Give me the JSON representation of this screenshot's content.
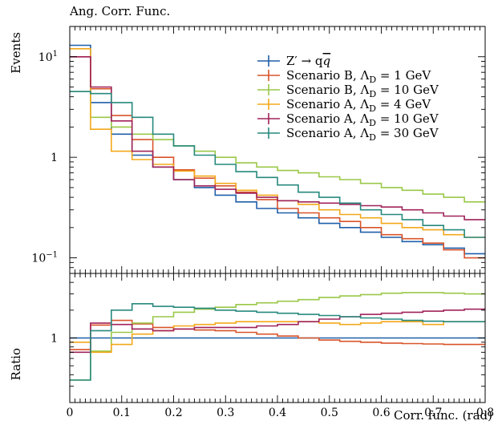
{
  "chart_data": {
    "type": "line",
    "title": "Ang. Corr. Func.",
    "xlabel": "Corr. func. (rad)",
    "ylabel_main": "Events",
    "ylabel_ratio": "Ratio",
    "xlim": [
      0,
      0.8
    ],
    "ylim_main": [
      0.07,
      20
    ],
    "ylim_ratio": [
      0.2,
      5
    ],
    "yscale": "log",
    "legend_position": "top-right",
    "x_ticks": [
      {
        "v": 0,
        "label": "0"
      },
      {
        "v": 0.1,
        "label": "0.1"
      },
      {
        "v": 0.2,
        "label": "0.2"
      },
      {
        "v": 0.3,
        "label": "0.3"
      },
      {
        "v": 0.4,
        "label": "0.4"
      },
      {
        "v": 0.5,
        "label": "0.5"
      },
      {
        "v": 0.6,
        "label": "0.6"
      },
      {
        "v": 0.7,
        "label": "0.7"
      },
      {
        "v": 0.8,
        "label": "0.8"
      }
    ],
    "main_y_ticks": [
      {
        "v": 0.1,
        "base": "10",
        "exp": "−1"
      },
      {
        "v": 1,
        "base": "1",
        "exp": ""
      },
      {
        "v": 10,
        "base": "10",
        "exp": "1"
      }
    ],
    "ratio_y_ticks": [
      {
        "v": 1,
        "label": "1"
      }
    ],
    "bin_edges": [
      0,
      0.04,
      0.08,
      0.12,
      0.16,
      0.2,
      0.24,
      0.28,
      0.32,
      0.36,
      0.4,
      0.44,
      0.48,
      0.52,
      0.56,
      0.6,
      0.64,
      0.68,
      0.72,
      0.76,
      0.8
    ],
    "series": [
      {
        "label_main": "Z′ → q",
        "label_bar": "q",
        "label_sub": "",
        "label_tail": "",
        "color": "#1f5fa8",
        "values": [
          13,
          3.5,
          1.7,
          1.05,
          0.8,
          0.6,
          0.5,
          0.42,
          0.36,
          0.31,
          0.28,
          0.25,
          0.22,
          0.2,
          0.18,
          0.16,
          0.145,
          0.135,
          0.125,
          0.11
        ],
        "ratio": [
          1,
          1,
          1,
          1,
          1,
          1,
          1,
          1,
          1,
          1,
          1,
          1,
          1,
          1,
          1,
          1,
          1,
          1,
          1,
          1
        ]
      },
      {
        "label_main": "Scenario B, Λ",
        "label_bar": "",
        "label_sub": "D",
        "label_tail": " = 1 GeV",
        "color": "#d9542a",
        "values": [
          10,
          4.8,
          2.6,
          1.5,
          1.0,
          0.75,
          0.62,
          0.52,
          0.45,
          0.38,
          0.31,
          0.28,
          0.25,
          0.23,
          0.2,
          0.17,
          0.155,
          0.14,
          0.12,
          0.1
        ],
        "ratio": [
          0.75,
          1.38,
          1.55,
          1.42,
          1.3,
          1.25,
          1.22,
          1.2,
          1.15,
          1.1,
          1.05,
          1,
          0.95,
          0.92,
          0.9,
          0.88,
          0.87,
          0.86,
          0.85,
          0.85
        ]
      },
      {
        "label_main": "Scenario B, Λ",
        "label_bar": "",
        "label_sub": "D",
        "label_tail": " = 10 GeV",
        "color": "#9ac848",
        "values": [
          4.5,
          2.5,
          2.0,
          1.7,
          1.5,
          1.3,
          1.15,
          1.0,
          0.88,
          0.8,
          0.74,
          0.7,
          0.64,
          0.6,
          0.55,
          0.5,
          0.47,
          0.43,
          0.4,
          0.36
        ],
        "ratio": [
          0.35,
          0.72,
          1.15,
          1.45,
          1.7,
          1.9,
          2.05,
          2.15,
          2.3,
          2.4,
          2.5,
          2.6,
          2.75,
          2.85,
          2.95,
          3.05,
          3.1,
          3.1,
          3.05,
          3.0
        ]
      },
      {
        "label_main": "Scenario A, Λ",
        "label_bar": "",
        "label_sub": "D",
        "label_tail": " = 4 GeV",
        "color": "#f3a81b",
        "values": [
          12,
          1.9,
          1.15,
          0.95,
          0.85,
          0.73,
          0.65,
          0.55,
          0.47,
          0.42,
          0.37,
          0.34,
          0.3,
          0.27,
          0.25,
          0.22,
          0.2,
          0.19,
          0.17,
          0.16
        ],
        "ratio": [
          0.9,
          0.7,
          0.85,
          1.1,
          1.2,
          1.35,
          1.4,
          1.45,
          1.5,
          1.5,
          1.5,
          1.5,
          1.45,
          1.4,
          1.45,
          1.5,
          1.5,
          1.4,
          1.5,
          1.5
        ]
      },
      {
        "label_main": "Scenario A, Λ",
        "label_bar": "",
        "label_sub": "D",
        "label_tail": " = 10 GeV",
        "color": "#a0235a",
        "values": [
          10,
          5.0,
          2.3,
          1.15,
          0.8,
          0.6,
          0.52,
          0.48,
          0.44,
          0.4,
          0.37,
          0.36,
          0.35,
          0.34,
          0.33,
          0.32,
          0.3,
          0.28,
          0.26,
          0.24
        ],
        "ratio": [
          0.7,
          1.45,
          1.4,
          1.25,
          1.2,
          1.25,
          1.3,
          1.3,
          1.3,
          1.35,
          1.4,
          1.5,
          1.6,
          1.7,
          1.8,
          1.85,
          1.9,
          1.95,
          2.0,
          2.05
        ]
      },
      {
        "label_main": "Scenario A, Λ",
        "label_bar": "",
        "label_sub": "D",
        "label_tail": " = 30 GeV",
        "color": "#27897e",
        "values": [
          4.5,
          4.3,
          3.5,
          2.5,
          1.7,
          1.3,
          1.05,
          0.85,
          0.72,
          0.63,
          0.53,
          0.45,
          0.4,
          0.35,
          0.3,
          0.27,
          0.24,
          0.21,
          0.19,
          0.16
        ],
        "ratio": [
          0.35,
          1.2,
          2.0,
          2.35,
          2.2,
          2.15,
          2.1,
          2.0,
          1.95,
          1.9,
          1.85,
          1.8,
          1.75,
          1.7,
          1.65,
          1.6,
          1.55,
          1.52,
          1.5,
          1.5
        ]
      }
    ]
  }
}
